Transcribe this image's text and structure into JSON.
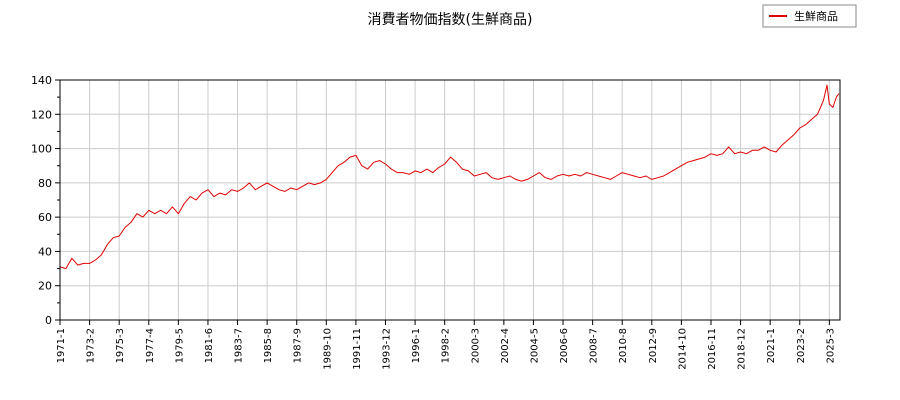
{
  "chart_data": {
    "type": "line",
    "title": "消費者物価指数(生鮮商品)",
    "xlabel": "",
    "ylabel": "",
    "ylim": [
      0,
      140
    ],
    "yticks": [
      "0",
      "20",
      "40",
      "60",
      "80",
      "100",
      "120",
      "140"
    ],
    "xlim": [
      "1971-01",
      "2025-12"
    ],
    "xticks": [
      "1971-1",
      "1973-2",
      "1975-3",
      "1977-4",
      "1979-5",
      "1981-6",
      "1983-7",
      "1985-8",
      "1987-9",
      "1989-10",
      "1991-11",
      "1993-12",
      "1996-1",
      "1998-2",
      "2000-3",
      "2002-4",
      "2004-5",
      "2006-6",
      "2008-7",
      "2010-8",
      "2012-9",
      "2014-10",
      "2016-11",
      "2018-12",
      "2021-1",
      "2023-2",
      "2025-3"
    ],
    "grid": true,
    "legend": "top-right",
    "series": [
      {
        "name": "生鮮商品",
        "color": "#e00000",
        "points": [
          [
            "1971-01",
            31
          ],
          [
            "1971-06",
            30
          ],
          [
            "1971-11",
            36
          ],
          [
            "1972-04",
            32
          ],
          [
            "1972-09",
            33
          ],
          [
            "1973-02",
            33
          ],
          [
            "1973-07",
            35
          ],
          [
            "1973-12",
            38
          ],
          [
            "1974-05",
            44
          ],
          [
            "1974-10",
            48
          ],
          [
            "1975-03",
            49
          ],
          [
            "1975-08",
            54
          ],
          [
            "1976-01",
            57
          ],
          [
            "1976-06",
            62
          ],
          [
            "1976-11",
            60
          ],
          [
            "1977-04",
            64
          ],
          [
            "1977-09",
            62
          ],
          [
            "1978-02",
            64
          ],
          [
            "1978-07",
            62
          ],
          [
            "1978-12",
            66
          ],
          [
            "1979-05",
            62
          ],
          [
            "1979-10",
            68
          ],
          [
            "1980-03",
            72
          ],
          [
            "1980-08",
            70
          ],
          [
            "1981-01",
            74
          ],
          [
            "1981-06",
            76
          ],
          [
            "1981-11",
            72
          ],
          [
            "1982-04",
            74
          ],
          [
            "1982-09",
            73
          ],
          [
            "1983-02",
            76
          ],
          [
            "1983-07",
            75
          ],
          [
            "1983-12",
            77
          ],
          [
            "1984-05",
            80
          ],
          [
            "1984-10",
            76
          ],
          [
            "1985-03",
            78
          ],
          [
            "1985-08",
            80
          ],
          [
            "1986-01",
            78
          ],
          [
            "1986-06",
            76
          ],
          [
            "1986-11",
            75
          ],
          [
            "1987-04",
            77
          ],
          [
            "1987-09",
            76
          ],
          [
            "1988-02",
            78
          ],
          [
            "1988-07",
            80
          ],
          [
            "1988-12",
            79
          ],
          [
            "1989-05",
            80
          ],
          [
            "1989-10",
            82
          ],
          [
            "1990-03",
            86
          ],
          [
            "1990-08",
            90
          ],
          [
            "1991-01",
            92
          ],
          [
            "1991-06",
            95
          ],
          [
            "1991-11",
            96
          ],
          [
            "1992-04",
            90
          ],
          [
            "1992-09",
            88
          ],
          [
            "1993-02",
            92
          ],
          [
            "1993-07",
            93
          ],
          [
            "1993-12",
            91
          ],
          [
            "1994-05",
            88
          ],
          [
            "1994-10",
            86
          ],
          [
            "1995-03",
            86
          ],
          [
            "1995-08",
            85
          ],
          [
            "1996-01",
            87
          ],
          [
            "1996-06",
            86
          ],
          [
            "1996-11",
            88
          ],
          [
            "1997-04",
            86
          ],
          [
            "1997-09",
            89
          ],
          [
            "1998-02",
            91
          ],
          [
            "1998-07",
            95
          ],
          [
            "1998-12",
            92
          ],
          [
            "1999-05",
            88
          ],
          [
            "1999-10",
            87
          ],
          [
            "2000-03",
            84
          ],
          [
            "2000-08",
            85
          ],
          [
            "2001-01",
            86
          ],
          [
            "2001-06",
            83
          ],
          [
            "2001-11",
            82
          ],
          [
            "2002-04",
            83
          ],
          [
            "2002-09",
            84
          ],
          [
            "2003-02",
            82
          ],
          [
            "2003-07",
            81
          ],
          [
            "2003-12",
            82
          ],
          [
            "2004-05",
            84
          ],
          [
            "2004-10",
            86
          ],
          [
            "2005-03",
            83
          ],
          [
            "2005-08",
            82
          ],
          [
            "2006-01",
            84
          ],
          [
            "2006-06",
            85
          ],
          [
            "2006-11",
            84
          ],
          [
            "2007-04",
            85
          ],
          [
            "2007-09",
            84
          ],
          [
            "2008-02",
            86
          ],
          [
            "2008-07",
            85
          ],
          [
            "2008-12",
            84
          ],
          [
            "2009-05",
            83
          ],
          [
            "2009-10",
            82
          ],
          [
            "2010-03",
            84
          ],
          [
            "2010-08",
            86
          ],
          [
            "2011-01",
            85
          ],
          [
            "2011-06",
            84
          ],
          [
            "2011-11",
            83
          ],
          [
            "2012-04",
            84
          ],
          [
            "2012-09",
            82
          ],
          [
            "2013-02",
            83
          ],
          [
            "2013-07",
            84
          ],
          [
            "2013-12",
            86
          ],
          [
            "2014-05",
            88
          ],
          [
            "2014-10",
            90
          ],
          [
            "2015-03",
            92
          ],
          [
            "2015-08",
            93
          ],
          [
            "2016-01",
            94
          ],
          [
            "2016-06",
            95
          ],
          [
            "2016-11",
            97
          ],
          [
            "2017-04",
            96
          ],
          [
            "2017-09",
            97
          ],
          [
            "2018-02",
            101
          ],
          [
            "2018-07",
            97
          ],
          [
            "2018-12",
            98
          ],
          [
            "2019-05",
            97
          ],
          [
            "2019-10",
            99
          ],
          [
            "2020-03",
            99
          ],
          [
            "2020-08",
            101
          ],
          [
            "2021-01",
            99
          ],
          [
            "2021-06",
            98
          ],
          [
            "2021-11",
            102
          ],
          [
            "2022-04",
            105
          ],
          [
            "2022-09",
            108
          ],
          [
            "2023-02",
            112
          ],
          [
            "2023-07",
            114
          ],
          [
            "2023-12",
            117
          ],
          [
            "2024-05",
            120
          ],
          [
            "2024-10",
            128
          ],
          [
            "2025-01",
            137
          ],
          [
            "2025-03",
            126
          ],
          [
            "2025-06",
            124
          ],
          [
            "2025-09",
            130
          ],
          [
            "2025-11",
            132
          ]
        ]
      }
    ]
  }
}
